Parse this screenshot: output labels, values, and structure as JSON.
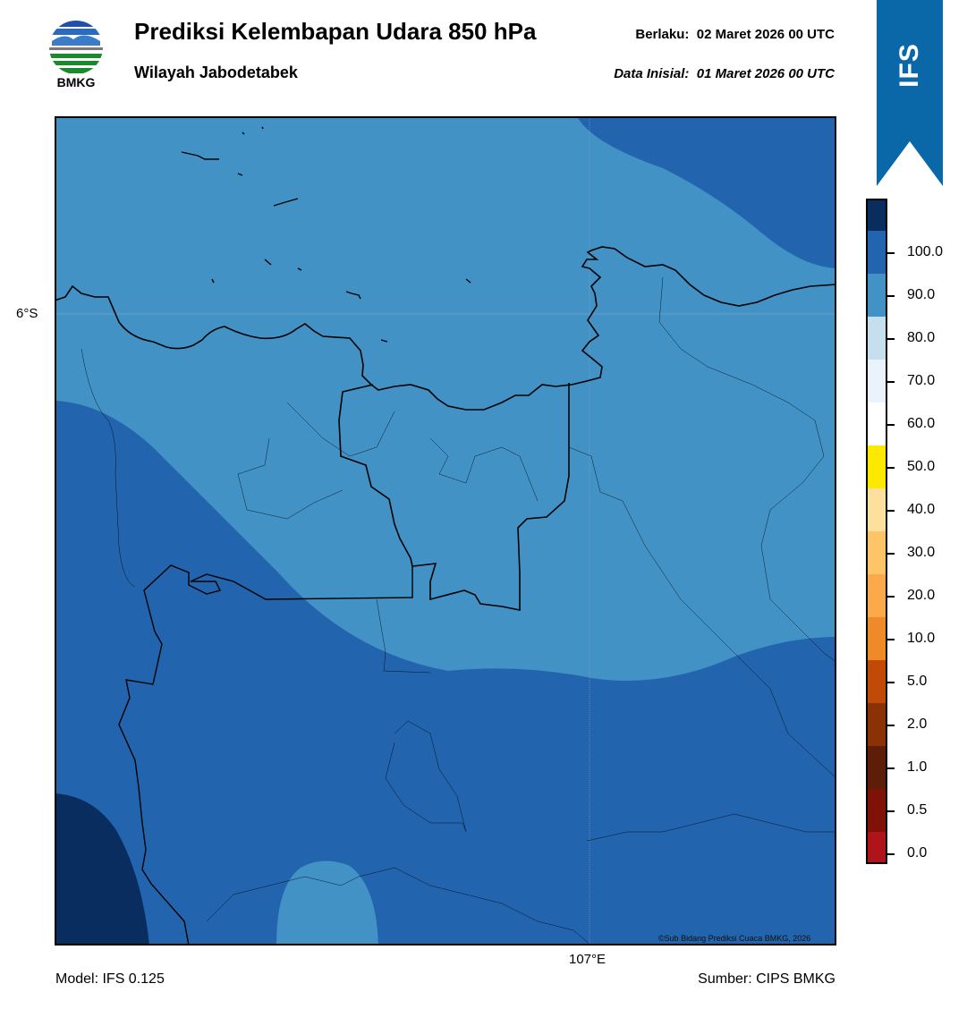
{
  "header": {
    "title": "Prediksi Kelembapan Udara 850 hPa",
    "subtitle": "Wilayah Jabodetabek",
    "valid_label": "Berlaku:",
    "valid_time": "02 Maret 2026 00 UTC",
    "init_label": "Data Inisial:",
    "init_time": "01 Maret 2026 00 UTC"
  },
  "logo": {
    "text": "BMKG",
    "icon": "bmkg-logo-icon"
  },
  "ribbon": {
    "text": "IFS",
    "color": "#0b68a8"
  },
  "map": {
    "lat_label": "6°S",
    "lon_label": "107°E",
    "credit": "©Sub Bidang Prediksi Cuaca BMKG, 2026",
    "colors": {
      "band_70_80": "#4292c6",
      "band_80_90": "#2264ad",
      "band_90_100": "#082d5e"
    }
  },
  "footer": {
    "model": "Model: IFS 0.125",
    "source": "Sumber: CIPS BMKG"
  },
  "colorbar": {
    "colors": [
      "#e6392f",
      "#b0141b",
      "#7f1207",
      "#5c1e09",
      "#8a3206",
      "#c14a06",
      "#ef8a28",
      "#fba94a",
      "#fdc468",
      "#fde09e",
      "#fde800",
      "#ffffff",
      "#eaf3fb",
      "#c6dfef",
      "#4292c6",
      "#2264ad",
      "#082d5e",
      "#36074e"
    ],
    "ticks": [
      "0.0",
      "0.5",
      "1.0",
      "2.0",
      "5.0",
      "10.0",
      "20.0",
      "30.0",
      "40.0",
      "50.0",
      "60.0",
      "70.0",
      "80.0",
      "90.0",
      "100.0"
    ]
  }
}
